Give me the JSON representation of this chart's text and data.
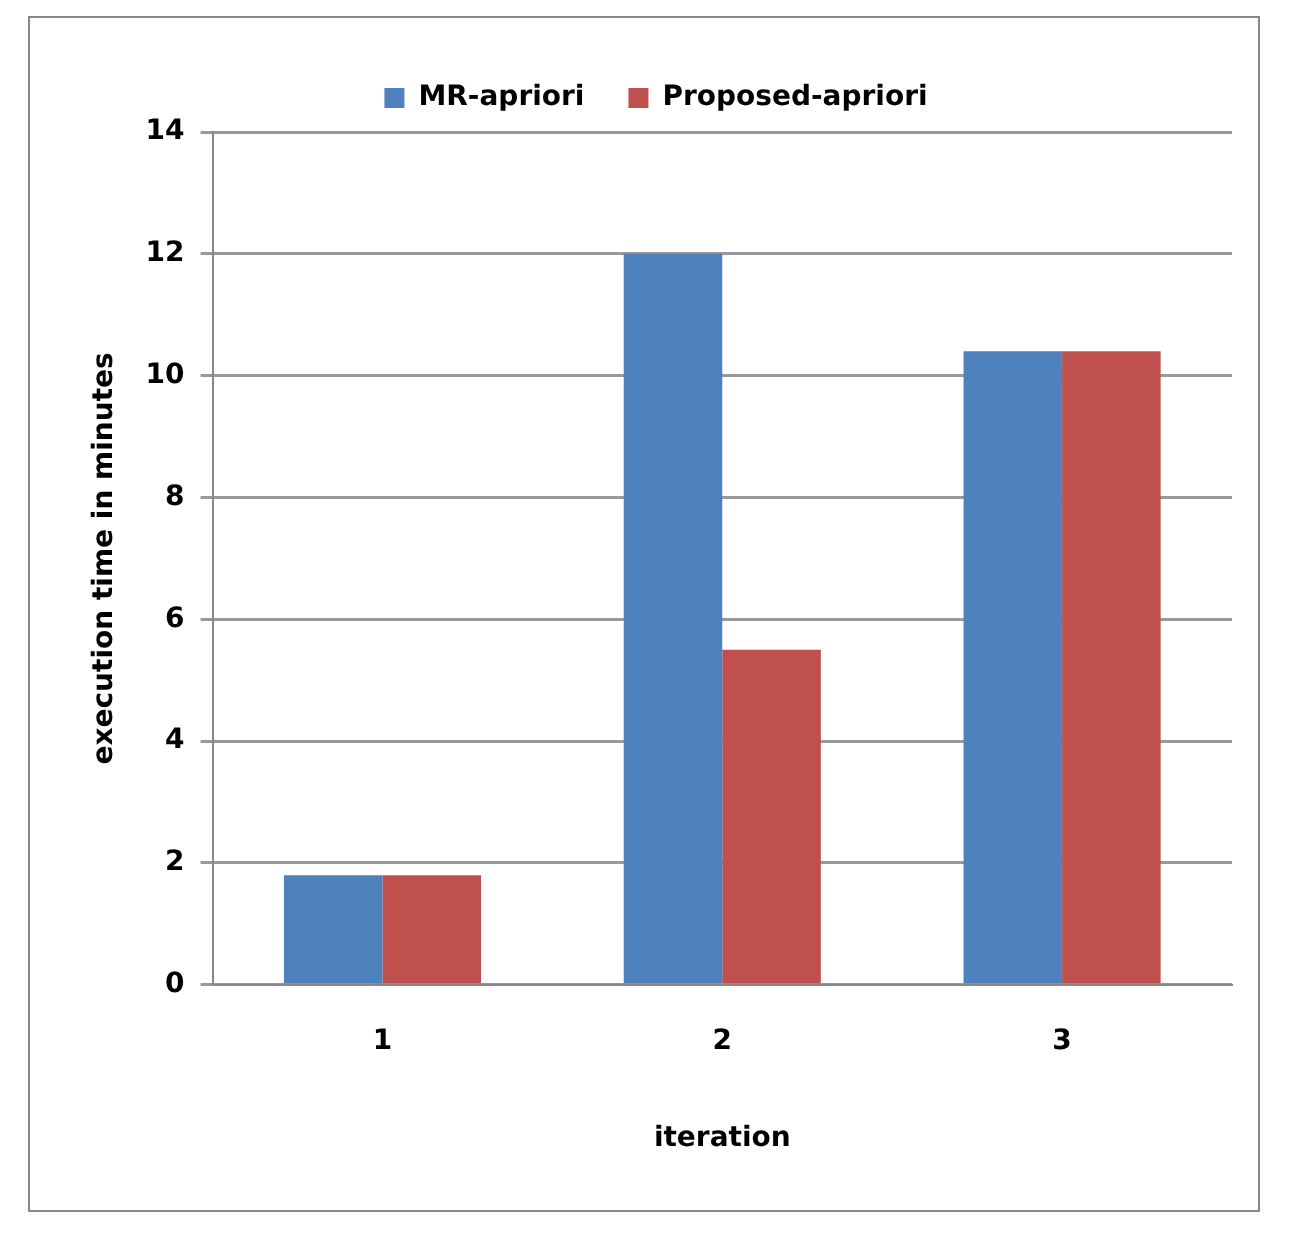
{
  "chart_data": {
    "type": "bar",
    "xlabel": "iteration",
    "ylabel": "execution time in minutes",
    "categories": [
      "1",
      "2",
      "3"
    ],
    "series": [
      {
        "name": "MR-apriori",
        "color": "#4f81bd",
        "values": [
          1.8,
          12,
          10.4
        ]
      },
      {
        "name": "Proposed-apriori",
        "color": "#c0504d",
        "values": [
          1.8,
          5.5,
          10.4
        ]
      }
    ],
    "ylim": [
      0,
      14
    ],
    "yticks": [
      0,
      2,
      4,
      6,
      8,
      10,
      12,
      14
    ],
    "grid": "y",
    "legend": "top"
  }
}
